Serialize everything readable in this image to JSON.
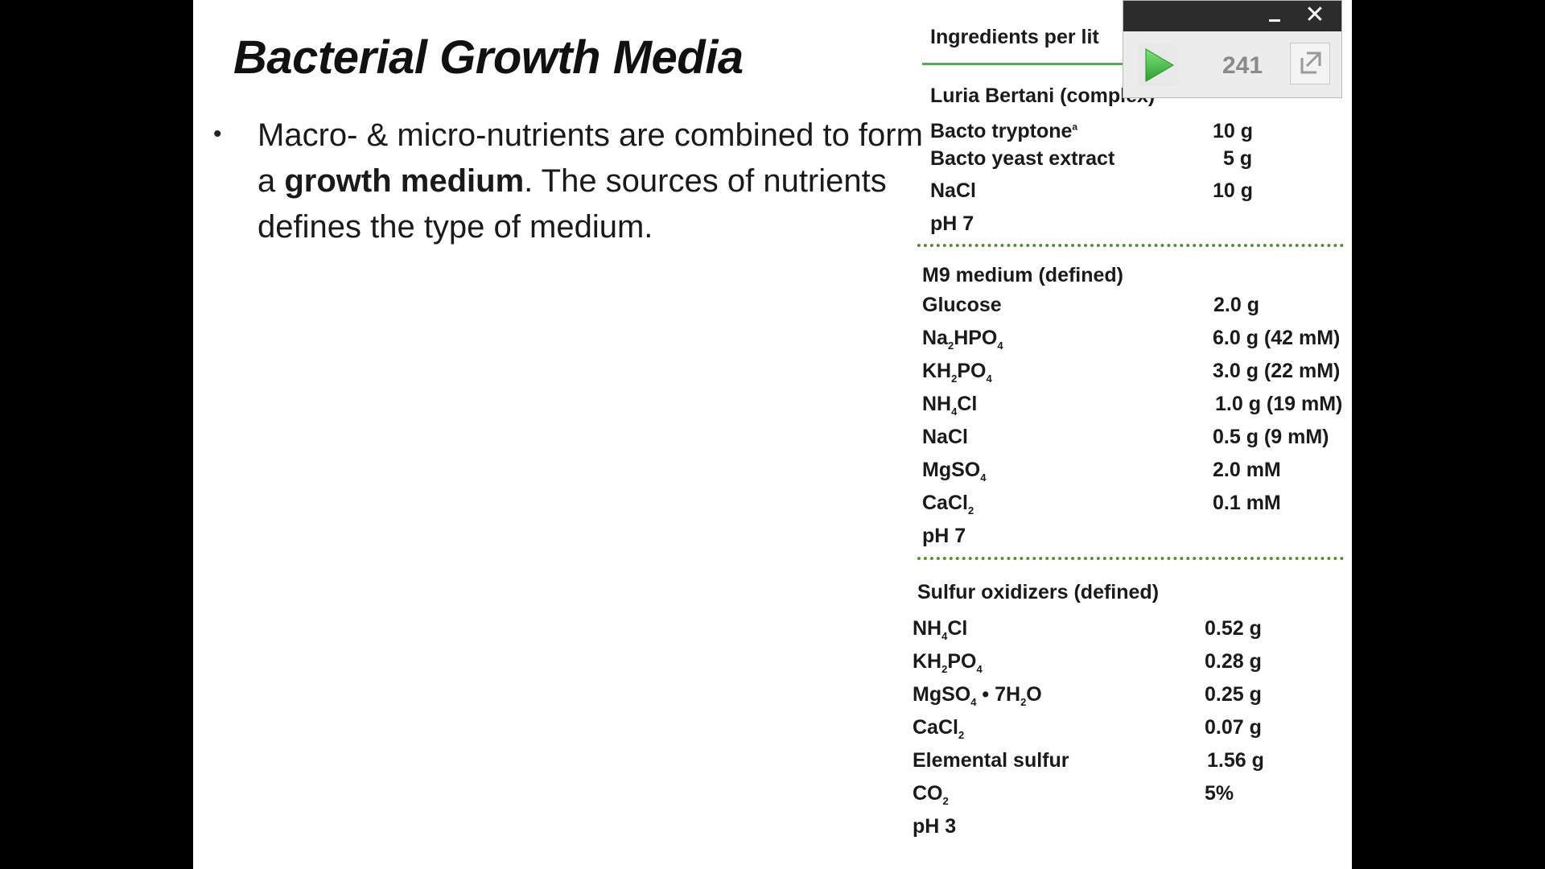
{
  "slide": {
    "title": "Bacterial Growth Media",
    "bullet": {
      "part1": "Macro-  & micro-nutrients  are combined to form a ",
      "bold": "growth medium",
      "part2": ".  The sources of nutrients  defines the type of medium."
    }
  },
  "table": {
    "header": "Ingredients per lit",
    "lb": {
      "title": "Luria Bertani (complex)",
      "rows": [
        {
          "name": "Bacto tryptone",
          "sup": "a",
          "value": "10 g"
        },
        {
          "name": "Bacto yeast extract",
          "value": "5 g"
        },
        {
          "name": "NaCl",
          "value": "10 g"
        }
      ],
      "ph": "pH 7"
    },
    "m9": {
      "title": "M9 medium (defined)",
      "ph": "pH 7",
      "glucose": {
        "name": "Glucose",
        "value": "2.0 g"
      },
      "na2hpo4": {
        "a": "Na",
        "b": "2",
        "c": "HPO",
        "d": "4",
        "value": "6.0 g (42 mM)"
      },
      "kh2po4": {
        "a": "KH",
        "b": "2",
        "c": "PO",
        "d": "4",
        "value": "3.0 g (22 mM)"
      },
      "nh4cl": {
        "a": "NH",
        "b": "4",
        "c": "Cl",
        "value": "1.0 g (19 mM)"
      },
      "nacl": {
        "name": "NaCl",
        "value": "0.5 g (9 mM)"
      },
      "mgso4": {
        "a": "MgSO",
        "b": "4",
        "value": "2.0 mM"
      },
      "cacl2": {
        "a": "CaCl",
        "b": "2",
        "value": "0.1 mM"
      }
    },
    "sulfur": {
      "title": "Sulfur oxidizers (defined)",
      "ph": "pH 3",
      "nh4cl": {
        "a": "NH",
        "b": "4",
        "c": "Cl",
        "value": "0.52 g"
      },
      "kh2po4": {
        "a": "KH",
        "b": "2",
        "c": "PO",
        "d": "4",
        "value": "0.28 g"
      },
      "mgso4": {
        "a": "MgSO",
        "b": "4",
        "c": " • 7H",
        "d": "2",
        "e": "O",
        "value": "0.25 g"
      },
      "cacl2": {
        "a": "CaCl",
        "b": "2",
        "value": "0.07 g"
      },
      "sulfur": {
        "name": "Elemental sulfur",
        "value": "1.56 g"
      },
      "co2": {
        "a": "CO",
        "b": "2",
        "value": "5%"
      }
    }
  },
  "player": {
    "counter": "241",
    "icons": {
      "minimize": "minimize-icon",
      "close": "close-icon",
      "play": "play-icon",
      "expand": "expand-icon"
    },
    "colors": {
      "bar": "#2c2c2c",
      "play": "#3cb73c",
      "accent_line": "#5aa95a"
    }
  }
}
